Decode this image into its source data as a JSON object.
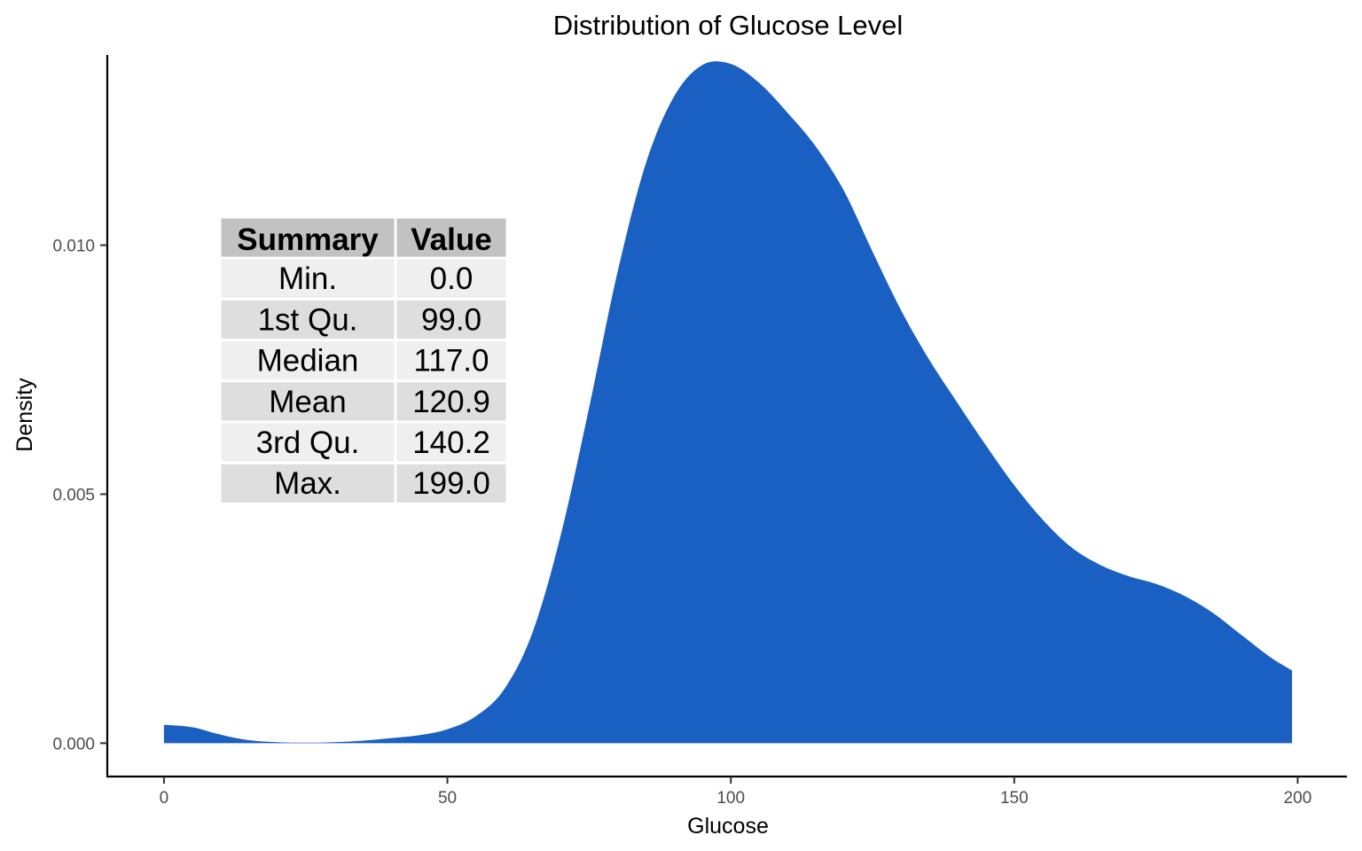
{
  "chart_data": {
    "type": "area",
    "title": "Distribution of Glucose Level",
    "xlabel": "Glucose",
    "ylabel": "Density",
    "xlim": [
      -10,
      209
    ],
    "ylim": [
      -0.00067,
      0.01382
    ],
    "x_ticks": [
      0,
      50,
      100,
      150,
      200
    ],
    "x_tick_labels": [
      "0",
      "50",
      "100",
      "150",
      "200"
    ],
    "y_ticks": [
      0.0,
      0.005,
      0.01
    ],
    "y_tick_labels": [
      "0.000",
      "0.005",
      "0.010"
    ],
    "grid": false,
    "fill_color": "#1a5fc2",
    "series": [
      {
        "x": [
          0,
          5,
          10,
          15,
          20,
          25,
          30,
          35,
          40,
          45,
          50,
          55,
          60,
          65,
          70,
          75,
          80,
          85,
          90,
          95,
          100,
          105,
          110,
          115,
          120,
          125,
          130,
          135,
          140,
          145,
          150,
          155,
          160,
          165,
          170,
          175,
          180,
          185,
          190,
          195,
          199
        ],
        "values": [
          0.00037,
          0.00032,
          0.00017,
          6e-05,
          2e-05,
          1e-05,
          2e-05,
          5e-05,
          0.0001,
          0.00016,
          0.00028,
          0.00054,
          0.00108,
          0.00222,
          0.00418,
          0.00674,
          0.00945,
          0.01164,
          0.01299,
          0.01362,
          0.01364,
          0.01326,
          0.01266,
          0.01198,
          0.01108,
          0.00987,
          0.0087,
          0.0077,
          0.00683,
          0.00598,
          0.00518,
          0.00449,
          0.00394,
          0.00359,
          0.00336,
          0.0032,
          0.00296,
          0.00262,
          0.00218,
          0.00174,
          0.00146
        ]
      }
    ]
  },
  "summary_table": {
    "headers": [
      "Summary",
      "Value"
    ],
    "rows": [
      [
        "Min.",
        "0.0"
      ],
      [
        "1st Qu.",
        "99.0"
      ],
      [
        "Median",
        "117.0"
      ],
      [
        "Mean",
        "120.9"
      ],
      [
        "3rd Qu.",
        "140.2"
      ],
      [
        "Max.",
        "199.0"
      ]
    ]
  }
}
